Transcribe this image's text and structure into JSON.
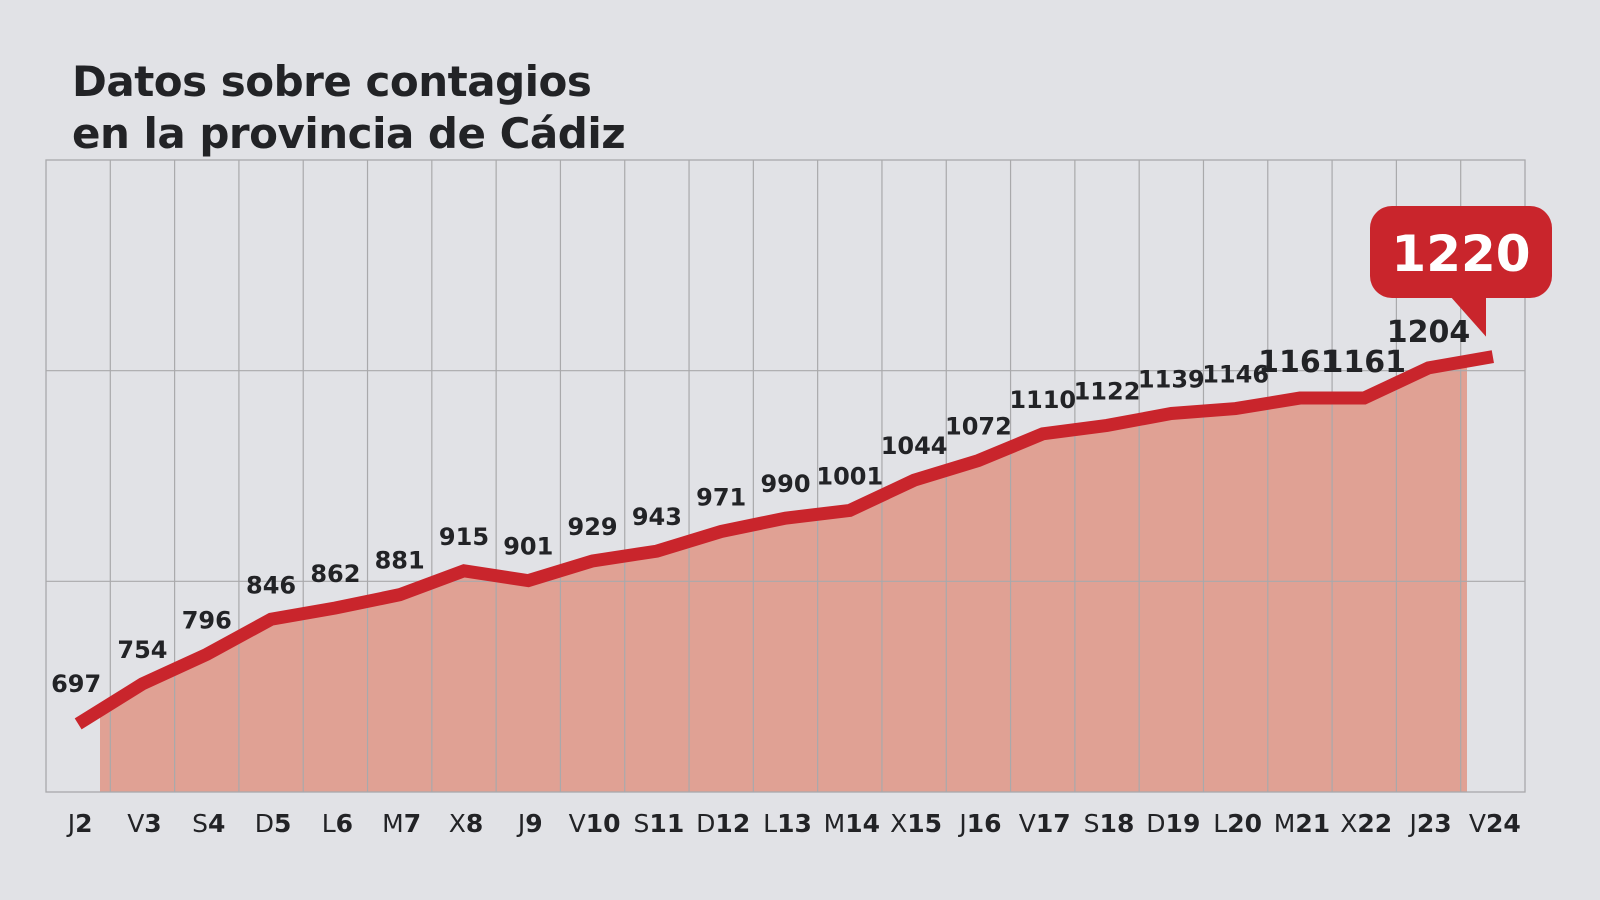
{
  "chart_data": {
    "type": "area",
    "title": "Datos sobre contagios\nen la provincia de Cádiz",
    "title_lines": [
      "Datos sobre contagios",
      "en la provincia de Cádiz"
    ],
    "categories": [
      {
        "day": "J",
        "num": "2"
      },
      {
        "day": "V",
        "num": "3"
      },
      {
        "day": "S",
        "num": "4"
      },
      {
        "day": "D",
        "num": "5"
      },
      {
        "day": "L",
        "num": "6"
      },
      {
        "day": "M",
        "num": "7"
      },
      {
        "day": "X",
        "num": "8"
      },
      {
        "day": "J",
        "num": "9"
      },
      {
        "day": "V",
        "num": "10"
      },
      {
        "day": "S",
        "num": "11"
      },
      {
        "day": "D",
        "num": "12"
      },
      {
        "day": "L",
        "num": "13"
      },
      {
        "day": "M",
        "num": "14"
      },
      {
        "day": "X",
        "num": "15"
      },
      {
        "day": "J",
        "num": "16"
      },
      {
        "day": "V",
        "num": "17"
      },
      {
        "day": "S",
        "num": "18"
      },
      {
        "day": "D",
        "num": "19"
      },
      {
        "day": "L",
        "num": "20"
      },
      {
        "day": "M",
        "num": "21"
      },
      {
        "day": "X",
        "num": "22"
      },
      {
        "day": "J",
        "num": "23"
      },
      {
        "day": "V",
        "num": "24"
      }
    ],
    "values": [
      697,
      754,
      796,
      846,
      862,
      881,
      915,
      901,
      929,
      943,
      971,
      990,
      1001,
      1044,
      1072,
      1110,
      1122,
      1139,
      1146,
      1161,
      1161,
      1204,
      1220
    ],
    "highlight": {
      "label": "1220"
    },
    "xlabel": "",
    "ylabel": "",
    "ylim": [
      600,
      1500
    ],
    "grid": true,
    "legend": "none",
    "colors": {
      "line": "#c9252c",
      "fill": "#e0a194",
      "grid": "#a9a9ab",
      "background": "#e1e2e6",
      "text": "#222326"
    }
  }
}
